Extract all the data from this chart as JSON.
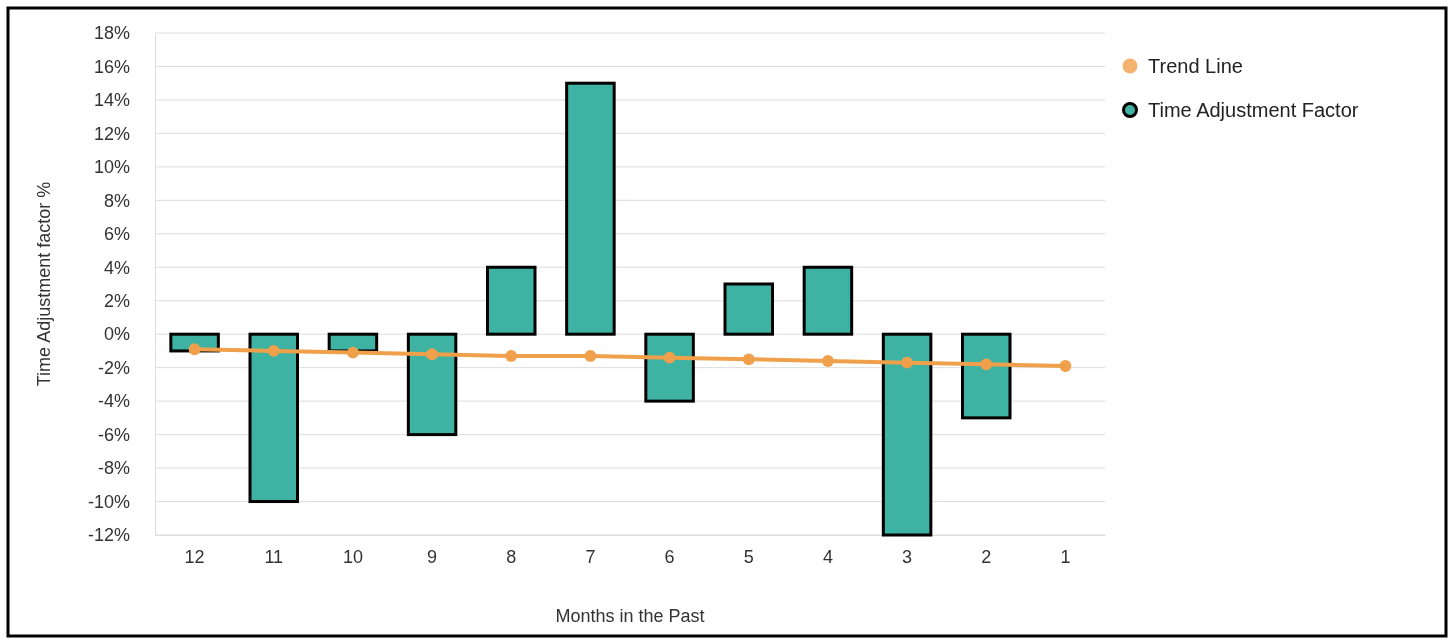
{
  "chart_data": {
    "type": "bar",
    "xlabel": "Months in the Past",
    "ylabel": "Time Adjustment factor %",
    "categories": [
      "12",
      "11",
      "10",
      "9",
      "8",
      "7",
      "6",
      "5",
      "4",
      "3",
      "2",
      "1"
    ],
    "series": [
      {
        "name": "Trend Line",
        "type": "line",
        "color": "#f0a04b",
        "marker": "circle",
        "line_style": "solid",
        "values": [
          -0.9,
          -1.0,
          -1.1,
          -1.2,
          -1.3,
          -1.3,
          -1.4,
          -1.5,
          -1.6,
          -1.7,
          -1.8,
          -1.9
        ]
      },
      {
        "name": "Time Adjustment Factor",
        "color": "#3fb3a3",
        "values": [
          -1,
          -10,
          -1,
          -6,
          4,
          15,
          -4,
          3,
          4,
          -12,
          -5,
          null
        ]
      }
    ],
    "ylim": [
      -12,
      18
    ],
    "yticks": [
      {
        "value": -12,
        "label": "-12%"
      },
      {
        "value": -10,
        "label": "-10%"
      },
      {
        "value": -8,
        "label": "-8%"
      },
      {
        "value": -6,
        "label": "-6%"
      },
      {
        "value": -4,
        "label": "-4%"
      },
      {
        "value": -2,
        "label": "-2%"
      },
      {
        "value": 0,
        "label": "0%"
      },
      {
        "value": 2,
        "label": "2%"
      },
      {
        "value": 4,
        "label": "4%"
      },
      {
        "value": 6,
        "label": "6%"
      },
      {
        "value": 8,
        "label": "8%"
      },
      {
        "value": 10,
        "label": "10%"
      },
      {
        "value": 12,
        "label": "12%"
      },
      {
        "value": 14,
        "label": "14%"
      },
      {
        "value": 16,
        "label": "16%"
      },
      {
        "value": 18,
        "label": "18%"
      }
    ],
    "grid": "y",
    "legend": "top right"
  }
}
